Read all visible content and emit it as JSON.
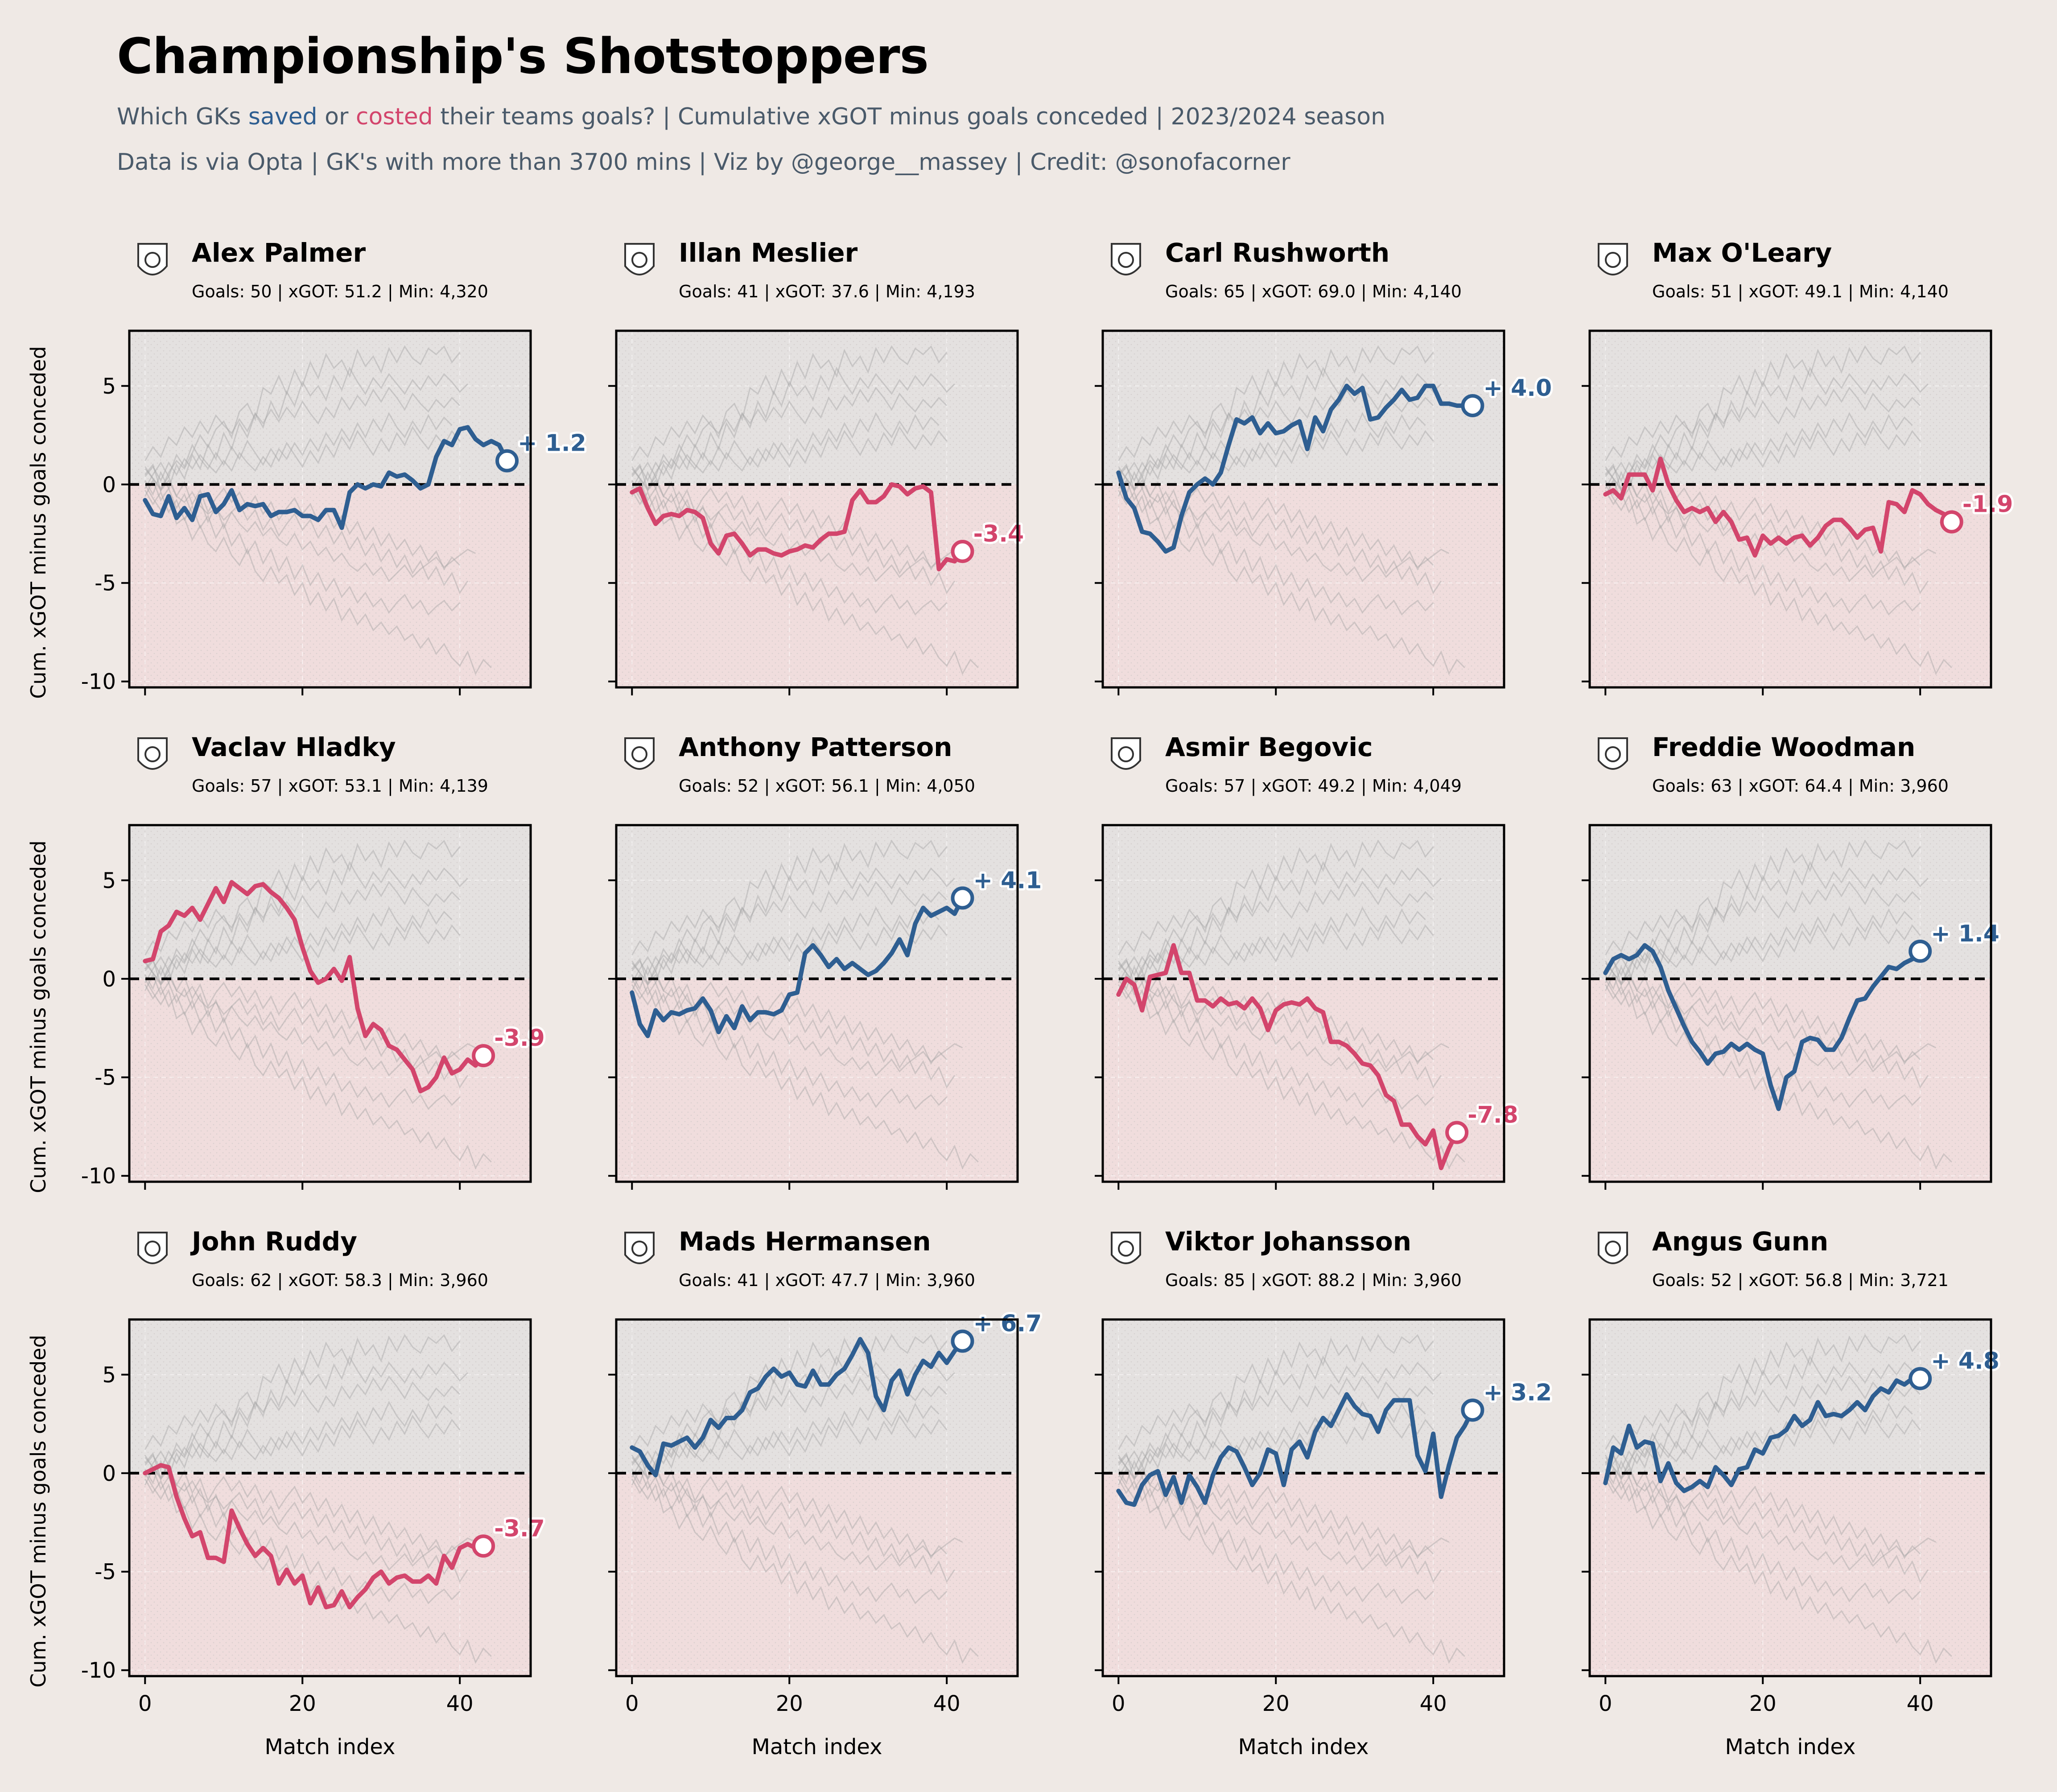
{
  "title": "Championship's Shotstoppers",
  "subtitle": {
    "part1": "Which GKs ",
    "saved_word": "saved",
    "part2": " or ",
    "costed_word": "costed",
    "part3": " their teams goals? | Cumulative xGOT minus goals conceded | 2023/2024 season",
    "line2": "Data is via Opta | GK's with more than 3700 mins | Viz by @george__massey | Credit: @sonofacorner"
  },
  "colors": {
    "background": "#efe9e5",
    "saved": "#2e5e91",
    "costed": "#d3456c",
    "positive_zone": "#e4e1e0",
    "negative_zone": "#f0dddd",
    "ghost": "#a6a6a6"
  },
  "chart_data": {
    "type": "line",
    "layout": "small-multiples 4x3",
    "xlabel": "Match index",
    "ylabel": "Cum. xGOT minus goals conceded",
    "xlim": [
      -2,
      49
    ],
    "ylim": [
      -10.3,
      7.8
    ],
    "xticks": [
      0,
      20,
      40
    ],
    "yticks": [
      5,
      0,
      -5,
      -10
    ],
    "reference_line": 0,
    "panels": [
      {
        "name": "Alex Palmer",
        "badge": "albion-crest-icon",
        "stats": "Goals: 50 | xGOT: 51.2 | Min: 4,320",
        "final": 1.2,
        "label": "+ 1.2",
        "color": "saved",
        "values": [
          -0.8,
          -1.5,
          -1.6,
          -0.6,
          -1.7,
          -1.2,
          -1.8,
          -0.6,
          -0.5,
          -1.4,
          -1.0,
          -0.3,
          -1.3,
          -1.0,
          -1.1,
          -1.0,
          -1.6,
          -1.4,
          -1.4,
          -1.3,
          -1.6,
          -1.6,
          -1.8,
          -1.3,
          -1.3,
          -2.2,
          -0.4,
          0.0,
          -0.2,
          0.0,
          -0.1,
          0.6,
          0.4,
          0.5,
          0.2,
          -0.2,
          0.0,
          1.4,
          2.2,
          2.0,
          2.8,
          2.9,
          2.3,
          2.0,
          2.2,
          2.0,
          1.2
        ]
      },
      {
        "name": "Illan Meslier",
        "badge": "leeds-crest-icon",
        "stats": "Goals: 41 | xGOT: 37.6 | Min: 4,193",
        "final": -3.4,
        "label": "-3.4",
        "color": "costed",
        "values": [
          -0.4,
          -0.2,
          -1.2,
          -2.0,
          -1.6,
          -1.5,
          -1.6,
          -1.3,
          -1.4,
          -1.7,
          -3.0,
          -3.5,
          -2.6,
          -2.5,
          -3.0,
          -3.6,
          -3.3,
          -3.3,
          -3.5,
          -3.6,
          -3.4,
          -3.3,
          -3.1,
          -3.2,
          -2.8,
          -2.5,
          -2.5,
          -2.4,
          -0.8,
          -0.3,
          -0.9,
          -0.9,
          -0.6,
          0.0,
          -0.1,
          -0.5,
          -0.2,
          -0.1,
          -0.4,
          -4.3,
          -3.8,
          -3.9,
          -3.4
        ]
      },
      {
        "name": "Carl Rushworth",
        "badge": "swansea-crest-icon",
        "stats": "Goals: 65 | xGOT: 69.0 | Min: 4,140",
        "final": 4.0,
        "label": "+ 4.0",
        "color": "saved",
        "values": [
          0.6,
          -0.7,
          -1.2,
          -2.4,
          -2.5,
          -2.9,
          -3.4,
          -3.2,
          -1.6,
          -0.4,
          0.0,
          0.3,
          0.0,
          0.6,
          2.0,
          3.3,
          3.1,
          3.4,
          2.6,
          3.1,
          2.6,
          2.7,
          3.0,
          3.2,
          1.8,
          3.4,
          2.7,
          3.8,
          4.3,
          5.0,
          4.6,
          4.9,
          3.3,
          3.4,
          3.9,
          4.3,
          4.8,
          4.3,
          4.4,
          5.0,
          5.0,
          4.1,
          4.1,
          4.0,
          4.0,
          4.0
        ]
      },
      {
        "name": "Max O'Leary",
        "badge": "bristol-crest-icon",
        "stats": "Goals: 51 | xGOT: 49.1 | Min: 4,140",
        "final": -1.9,
        "label": "-1.9",
        "color": "costed",
        "values": [
          -0.5,
          -0.3,
          -0.7,
          0.5,
          0.5,
          0.5,
          -0.3,
          1.3,
          0.0,
          -0.8,
          -1.4,
          -1.2,
          -1.4,
          -1.2,
          -1.9,
          -1.4,
          -1.9,
          -2.8,
          -2.7,
          -3.6,
          -2.6,
          -3.0,
          -2.7,
          -3.0,
          -2.7,
          -2.6,
          -3.1,
          -2.7,
          -2.1,
          -1.8,
          -1.8,
          -2.2,
          -2.7,
          -2.3,
          -2.2,
          -3.4,
          -0.9,
          -1.0,
          -1.4,
          -0.3,
          -0.5,
          -1.0,
          -1.3,
          -1.5,
          -1.9
        ]
      },
      {
        "name": "Vaclav Hladky",
        "badge": "ipswich-crest-icon",
        "stats": "Goals: 57 | xGOT: 53.1 | Min: 4,139",
        "final": -3.9,
        "label": "-3.9",
        "color": "costed",
        "values": [
          0.9,
          1.0,
          2.4,
          2.7,
          3.4,
          3.2,
          3.6,
          3.0,
          3.8,
          4.6,
          3.9,
          4.9,
          4.6,
          4.3,
          4.7,
          4.8,
          4.4,
          4.1,
          3.6,
          3.0,
          1.6,
          0.4,
          -0.2,
          0.0,
          0.5,
          -0.1,
          1.1,
          -1.5,
          -2.9,
          -2.3,
          -2.6,
          -3.4,
          -3.6,
          -4.1,
          -4.6,
          -5.7,
          -5.5,
          -5.0,
          -4.0,
          -4.8,
          -4.6,
          -4.1,
          -4.4,
          -3.9
        ]
      },
      {
        "name": "Anthony Patterson",
        "badge": "sunderland-crest-icon",
        "stats": "Goals: 52 | xGOT: 56.1 | Min: 4,050",
        "final": 4.1,
        "label": "+ 4.1",
        "color": "saved",
        "values": [
          -0.7,
          -2.3,
          -2.9,
          -1.6,
          -2.1,
          -1.7,
          -1.8,
          -1.6,
          -1.5,
          -1.0,
          -1.6,
          -2.7,
          -1.9,
          -2.5,
          -1.4,
          -2.1,
          -1.7,
          -1.7,
          -1.8,
          -1.6,
          -0.8,
          -0.7,
          1.3,
          1.7,
          1.2,
          0.6,
          1.0,
          0.5,
          0.8,
          0.5,
          0.2,
          0.4,
          0.8,
          1.3,
          2.0,
          1.2,
          2.8,
          3.6,
          3.2,
          3.4,
          3.6,
          3.3,
          4.1
        ]
      },
      {
        "name": "Asmir Begovic",
        "badge": "qpr-crest-icon",
        "stats": "Goals: 57 | xGOT: 49.2 | Min: 4,049",
        "final": -7.8,
        "label": "-7.8",
        "color": "costed",
        "values": [
          -0.8,
          0.0,
          -0.3,
          -1.6,
          0.1,
          0.2,
          0.3,
          1.7,
          0.3,
          0.3,
          -1.1,
          -1.1,
          -1.4,
          -1.0,
          -1.3,
          -1.2,
          -1.5,
          -1.0,
          -1.5,
          -2.6,
          -1.6,
          -1.3,
          -1.2,
          -1.3,
          -1.0,
          -1.5,
          -1.7,
          -3.2,
          -3.2,
          -3.4,
          -3.8,
          -4.3,
          -4.4,
          -4.9,
          -5.9,
          -6.2,
          -7.4,
          -7.4,
          -8.0,
          -8.4,
          -7.7,
          -9.6,
          -8.6,
          -7.8
        ]
      },
      {
        "name": "Freddie Woodman",
        "badge": "preston-crest-icon",
        "stats": "Goals: 63 | xGOT: 64.4 | Min: 3,960",
        "final": 1.4,
        "label": "+ 1.4",
        "color": "saved",
        "values": [
          0.3,
          1.0,
          1.2,
          1.0,
          1.2,
          1.7,
          1.4,
          0.6,
          -0.6,
          -1.5,
          -2.4,
          -3.2,
          -3.7,
          -4.3,
          -3.8,
          -3.7,
          -3.3,
          -3.6,
          -3.3,
          -3.6,
          -3.8,
          -5.4,
          -6.6,
          -5.0,
          -4.7,
          -3.2,
          -3.0,
          -3.1,
          -3.6,
          -3.6,
          -3.0,
          -2.0,
          -1.1,
          -1.0,
          -0.4,
          0.1,
          0.6,
          0.5,
          0.8,
          1.0,
          1.4
        ]
      },
      {
        "name": "John Ruddy",
        "badge": "birmingham-crest-icon",
        "stats": "Goals: 62 | xGOT: 58.3 | Min: 3,960",
        "final": -3.7,
        "label": "-3.7",
        "color": "costed",
        "values": [
          0.0,
          0.2,
          0.4,
          0.3,
          -1.2,
          -2.3,
          -3.2,
          -3.0,
          -4.3,
          -4.3,
          -4.5,
          -1.9,
          -2.8,
          -3.6,
          -4.2,
          -3.8,
          -4.2,
          -5.6,
          -4.9,
          -5.6,
          -5.2,
          -6.6,
          -5.8,
          -6.8,
          -6.7,
          -6.0,
          -6.8,
          -6.3,
          -5.9,
          -5.3,
          -5.0,
          -5.6,
          -5.3,
          -5.2,
          -5.5,
          -5.5,
          -5.2,
          -5.6,
          -4.2,
          -4.8,
          -3.8,
          -3.6,
          -3.8,
          -3.7
        ]
      },
      {
        "name": "Mads Hermansen",
        "badge": "leicester-crest-icon",
        "stats": "Goals: 41 | xGOT: 47.7 | Min: 3,960",
        "final": 6.7,
        "label": "+ 6.7",
        "color": "saved",
        "values": [
          1.3,
          1.1,
          0.4,
          -0.1,
          1.5,
          1.4,
          1.6,
          1.8,
          1.3,
          1.8,
          2.7,
          2.3,
          2.8,
          2.8,
          3.2,
          4.1,
          4.3,
          4.9,
          5.3,
          4.9,
          5.1,
          4.5,
          4.4,
          5.2,
          4.5,
          4.5,
          5.0,
          5.3,
          6.0,
          6.8,
          6.1,
          3.9,
          3.2,
          4.7,
          5.2,
          4.0,
          5.0,
          5.7,
          5.4,
          6.1,
          5.6,
          6.2,
          6.7
        ]
      },
      {
        "name": "Viktor Johansson",
        "badge": "rotherham-crest-icon",
        "stats": "Goals: 85 | xGOT: 88.2 | Min: 3,960",
        "final": 3.2,
        "label": "+ 3.2",
        "color": "saved",
        "values": [
          -0.9,
          -1.5,
          -1.6,
          -0.6,
          -0.1,
          0.1,
          -1.1,
          -0.2,
          -1.5,
          -0.1,
          -0.7,
          -1.5,
          -0.1,
          0.8,
          1.3,
          1.1,
          0.3,
          -0.6,
          0.0,
          1.2,
          1.0,
          -0.6,
          1.2,
          1.6,
          0.8,
          2.1,
          2.8,
          2.4,
          3.2,
          4.0,
          3.4,
          3.0,
          2.9,
          2.1,
          3.2,
          3.7,
          3.7,
          3.7,
          0.9,
          0.1,
          2.0,
          -1.2,
          0.4,
          1.8,
          2.4,
          3.2
        ]
      },
      {
        "name": "Angus Gunn",
        "badge": "norwich-crest-icon",
        "stats": "Goals: 52 | xGOT: 56.8 | Min: 3,721",
        "final": 4.8,
        "label": "+ 4.8",
        "color": "saved",
        "values": [
          -0.5,
          1.3,
          1.0,
          2.4,
          1.3,
          1.6,
          1.5,
          -0.4,
          0.5,
          -0.5,
          -0.9,
          -0.7,
          -0.4,
          -0.7,
          0.3,
          -0.1,
          -0.6,
          0.2,
          0.3,
          1.2,
          1.0,
          1.8,
          1.9,
          2.2,
          2.9,
          2.4,
          2.7,
          3.6,
          2.9,
          3.0,
          2.9,
          3.2,
          3.6,
          3.2,
          3.9,
          4.3,
          4.1,
          4.7,
          4.5,
          4.8,
          4.8
        ]
      }
    ],
    "ghost_lines": [
      [
        0.5,
        1.0,
        -0.3,
        0.6,
        1.2,
        0.8,
        1.6,
        2.5,
        1.9,
        2.8,
        3.2,
        2.4,
        3.7,
        4.1,
        3.3,
        4.9,
        4.6,
        5.5,
        4.6,
        5.8,
        5.0,
        6.2,
        5.4,
        6.6,
        5.9,
        6.3,
        5.5,
        6.8,
        6.0,
        6.5,
        5.7,
        6.9,
        6.2,
        7.0,
        6.4,
        6.1,
        6.9,
        6.6,
        7.0,
        6.2,
        6.7
      ],
      [
        0.0,
        -0.7,
        -1.3,
        -0.6,
        -2.0,
        -1.7,
        -2.8,
        -2.1,
        -3.0,
        -3.4,
        -2.7,
        -3.6,
        -4.1,
        -3.3,
        -4.4,
        -4.9,
        -4.2,
        -5.0,
        -4.6,
        -5.6,
        -5.0,
        -6.1,
        -5.5,
        -6.4,
        -5.8,
        -6.9,
        -6.3,
        -7.1,
        -6.6,
        -7.4,
        -7.0,
        -7.6,
        -7.2,
        -7.9,
        -7.6,
        -8.3,
        -7.8,
        -8.6,
        -8.1,
        -8.8,
        -9.2,
        -8.5,
        -9.6,
        -8.9,
        -9.3
      ],
      [
        0.8,
        0.3,
        -0.3,
        0.2,
        -0.6,
        -0.9,
        -0.4,
        -1.1,
        -1.5,
        -1.2,
        -1.8,
        -1.4,
        -2.0,
        -2.4,
        -1.9,
        -2.6,
        -2.2,
        -2.8,
        -3.1,
        -2.5,
        -3.3,
        -2.9,
        -3.6,
        -3.2,
        -3.9,
        -3.5,
        -4.1,
        -4.4,
        -4.0,
        -4.6,
        -4.2,
        -4.9,
        -4.5,
        -4.1,
        -4.7,
        -4.3,
        -4.0,
        -3.7,
        -4.2,
        -3.9,
        -3.6,
        -3.3,
        -3.5
      ],
      [
        1.2,
        1.9,
        1.4,
        2.4,
        2.0,
        2.9,
        2.4,
        3.2,
        2.6,
        3.5,
        3.0,
        2.6,
        3.3,
        2.7,
        3.6,
        3.1,
        3.8,
        3.2,
        3.9,
        3.4,
        4.2,
        3.6,
        3.1,
        3.9,
        3.4,
        4.4,
        3.8,
        4.5,
        4.0,
        4.8,
        4.2,
        4.9,
        4.4,
        3.8,
        4.6,
        4.1,
        3.7,
        4.3,
        3.9,
        4.4,
        4.0
      ],
      [
        -0.3,
        -1.0,
        -0.4,
        -1.4,
        -0.8,
        -1.8,
        -1.1,
        -2.2,
        -1.6,
        -2.7,
        -2.0,
        -3.1,
        -2.5,
        -3.5,
        -2.9,
        -4.0,
        -3.3,
        -4.4,
        -3.7,
        -4.8,
        -4.1,
        -5.1,
        -4.5,
        -5.4,
        -4.8,
        -5.7,
        -5.2,
        -6.0,
        -5.5,
        -6.2,
        -5.8,
        -6.5,
        -6.0,
        -5.6,
        -6.3,
        -5.9,
        -6.6,
        -6.2,
        -5.9,
        -6.4,
        -6.0
      ],
      [
        0.4,
        0.9,
        0.2,
        1.1,
        0.5,
        1.3,
        0.8,
        1.5,
        1.0,
        0.6,
        1.2,
        0.7,
        1.6,
        1.1,
        0.7,
        1.4,
        0.9,
        1.8,
        1.3,
        2.1,
        1.5,
        2.3,
        1.7,
        2.6,
        2.0,
        2.8,
        2.2,
        3.1,
        2.4,
        3.3,
        2.7,
        3.6,
        2.9,
        2.4,
        3.2,
        2.6,
        3.5,
        2.8,
        3.4,
        3.0
      ],
      [
        -0.6,
        0.2,
        -0.8,
        -0.2,
        -1.2,
        -0.5,
        -1.5,
        -0.8,
        -1.9,
        -1.1,
        -2.2,
        -1.4,
        -1.0,
        -1.8,
        -1.3,
        -2.3,
        -1.7,
        -2.6,
        -2.0,
        -1.5,
        -2.3,
        -1.8,
        -2.7,
        -2.1,
        -3.0,
        -2.4,
        -3.3,
        -2.7,
        -3.6,
        -3.0,
        -3.9,
        -3.3,
        -4.2,
        -3.6,
        -4.5,
        -3.9,
        -4.8,
        -4.2,
        -5.1,
        -4.5,
        -5.5,
        -4.9
      ],
      [
        0.2,
        -0.5,
        0.6,
        -0.2,
        1.0,
        0.3,
        1.5,
        0.8,
        2.0,
        1.3,
        2.6,
        1.8,
        3.1,
        2.4,
        3.6,
        2.9,
        4.2,
        3.4,
        4.7,
        4.0,
        5.2,
        4.5,
        5.0,
        4.3,
        5.5,
        4.8,
        5.9,
        5.2,
        4.6,
        5.4,
        4.9,
        5.6,
        5.1,
        4.6,
        5.3,
        4.8,
        5.5,
        5.0,
        5.6,
        5.2,
        4.7,
        5.1
      ],
      [
        0.9,
        0.3,
        -0.2,
        0.4,
        -0.6,
        0.1,
        -1.0,
        -0.3,
        -1.4,
        -0.7,
        -0.2,
        -0.9,
        -0.4,
        -1.2,
        -0.6,
        -1.5,
        -0.9,
        -1.8,
        -1.2,
        -0.7,
        -1.5,
        -1.0,
        -1.9,
        -1.3,
        -2.2,
        -1.6,
        -2.5,
        -1.9,
        -2.8,
        -2.2,
        -3.1,
        -2.5,
        -3.3,
        -2.8,
        -3.6,
        -3.1,
        -3.9,
        -3.4,
        -4.3,
        -3.7,
        -4.1
      ],
      [
        -0.2,
        0.5,
        1.1,
        0.4,
        1.5,
        0.9,
        2.0,
        1.3,
        0.8,
        1.6,
        1.0,
        1.9,
        1.3,
        2.2,
        1.6,
        1.0,
        1.8,
        1.2,
        2.1,
        1.5,
        0.9,
        1.7,
        1.1,
        2.0,
        1.4,
        2.4,
        1.8,
        2.7,
        2.1,
        1.5,
        2.3,
        1.7,
        2.6,
        2.0,
        2.9,
        2.3,
        1.8,
        2.5,
        2.0,
        2.7,
        2.2
      ]
    ]
  }
}
